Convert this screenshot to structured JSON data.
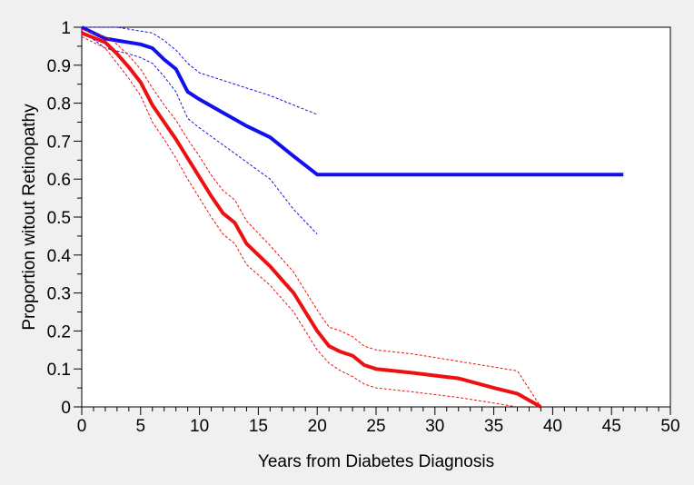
{
  "chart_data": {
    "type": "line",
    "xlabel": "Years from Diabetes Diagnosis",
    "ylabel": "Proportion witout Retinopathy",
    "xlim": [
      0,
      50
    ],
    "ylim": [
      0,
      1
    ],
    "x_ticks": [
      "0",
      "5",
      "10",
      "15",
      "20",
      "25",
      "30",
      "35",
      "40",
      "45",
      "50"
    ],
    "y_ticks": [
      "0",
      "0.1",
      "0.2",
      "0.3",
      "0.4",
      "0.5",
      "0.6",
      "0.7",
      "0.8",
      "0.9",
      "1"
    ],
    "grid": false,
    "legend": "none",
    "series": [
      {
        "role": "estimate",
        "color": "#1010ee",
        "style": "solid",
        "x": [
          0,
          2,
          3,
          4,
          5,
          6,
          7,
          8,
          9,
          10,
          12,
          14,
          16,
          18,
          20,
          46
        ],
        "y": [
          1.0,
          0.97,
          0.965,
          0.96,
          0.955,
          0.945,
          0.915,
          0.89,
          0.83,
          0.81,
          0.775,
          0.74,
          0.71,
          0.66,
          0.612,
          0.612
        ]
      },
      {
        "role": "upper-bound",
        "color": "#1010ee",
        "style": "dotted",
        "x": [
          0,
          3,
          5,
          6,
          7,
          8,
          9,
          10,
          12,
          14,
          16,
          18,
          20
        ],
        "y": [
          1.0,
          1.0,
          0.99,
          0.985,
          0.965,
          0.94,
          0.905,
          0.88,
          0.86,
          0.84,
          0.82,
          0.795,
          0.77
        ]
      },
      {
        "role": "lower-bound",
        "color": "#1010ee",
        "style": "dotted",
        "x": [
          0,
          2,
          4,
          5,
          6,
          7,
          8,
          9,
          10,
          12,
          14,
          16,
          18,
          20
        ],
        "y": [
          0.99,
          0.945,
          0.93,
          0.92,
          0.905,
          0.87,
          0.83,
          0.76,
          0.735,
          0.69,
          0.645,
          0.6,
          0.52,
          0.455
        ]
      },
      {
        "role": "estimate",
        "color": "#ee1010",
        "style": "solid",
        "x": [
          0,
          2,
          3,
          4,
          5,
          6,
          7,
          8,
          9,
          10,
          11,
          12,
          13,
          14,
          16,
          17,
          18,
          19,
          20,
          21,
          22,
          23,
          24,
          25,
          28,
          32,
          35,
          37,
          39
        ],
        "y": [
          0.985,
          0.96,
          0.93,
          0.895,
          0.855,
          0.795,
          0.75,
          0.705,
          0.655,
          0.605,
          0.555,
          0.51,
          0.485,
          0.43,
          0.37,
          0.335,
          0.3,
          0.25,
          0.2,
          0.16,
          0.145,
          0.135,
          0.11,
          0.1,
          0.09,
          0.075,
          0.05,
          0.035,
          0.0
        ]
      },
      {
        "role": "upper-bound",
        "color": "#ee1010",
        "style": "dotted",
        "x": [
          0,
          2,
          3,
          4,
          5,
          6,
          7,
          8,
          9,
          10,
          11,
          12,
          13,
          14,
          16,
          17,
          18,
          19,
          20,
          21,
          22,
          23,
          24,
          25,
          28,
          32,
          35,
          37,
          39
        ],
        "y": [
          0.995,
          0.975,
          0.955,
          0.925,
          0.89,
          0.84,
          0.795,
          0.755,
          0.705,
          0.66,
          0.61,
          0.57,
          0.545,
          0.49,
          0.425,
          0.39,
          0.355,
          0.305,
          0.255,
          0.21,
          0.2,
          0.185,
          0.16,
          0.15,
          0.14,
          0.12,
          0.105,
          0.095,
          0.0
        ]
      },
      {
        "role": "lower-bound",
        "color": "#ee1010",
        "style": "dotted",
        "x": [
          0,
          2,
          3,
          4,
          5,
          6,
          7,
          8,
          9,
          10,
          11,
          12,
          13,
          14,
          16,
          17,
          18,
          19,
          20,
          21,
          22,
          23,
          24,
          25,
          28,
          32,
          35,
          37
        ],
        "y": [
          0.975,
          0.945,
          0.905,
          0.865,
          0.82,
          0.75,
          0.705,
          0.655,
          0.6,
          0.55,
          0.5,
          0.455,
          0.43,
          0.375,
          0.32,
          0.285,
          0.25,
          0.2,
          0.15,
          0.115,
          0.095,
          0.08,
          0.06,
          0.05,
          0.04,
          0.025,
          0.01,
          0.0
        ]
      }
    ]
  }
}
